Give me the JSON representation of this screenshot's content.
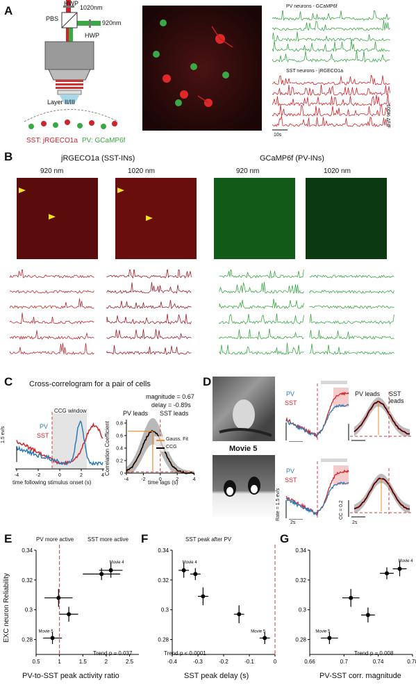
{
  "panels": {
    "A": "A",
    "B": "B",
    "C": "C",
    "D": "D",
    "E": "E",
    "F": "F",
    "G": "G"
  },
  "colors": {
    "red": "#d2232a",
    "green": "#3aa845",
    "blue": "#2b7bb9",
    "orange": "#f08a24",
    "dashed": "#d23a3a"
  },
  "panelA": {
    "hwp_top": "HWP",
    "wl_red": "1020nm",
    "pbs": "PBS",
    "wl_green": "920nm",
    "hwp_side": "HWP",
    "layer": "Layer II/III",
    "sst_label": "SST: jRGECO1a",
    "pv_label": "PV: GCaMP6f",
    "pv_traces_title": "PV neurons - GCaMP6f",
    "sst_traces_title": "SST neurons - jRGECO1a",
    "scale_time": "10s",
    "scale_df": "100% ΔF/F"
  },
  "panelB": {
    "title_red": "jRGECO1a (SST-INs)",
    "title_green": "GCaMP6f (PV-INs)",
    "wl1": "920 nm",
    "wl2": "1020 nm",
    "wl3": "920 nm",
    "wl4": "1020 nm"
  },
  "panelC": {
    "title": "Cross-correlogram for a pair of cells",
    "pv": "PV",
    "sst": "SST",
    "ccg_window": "CCG window",
    "scale": "1.5 ev/s",
    "xlabel_left": "time following stimulus onset (s)",
    "magnitude": "magnitude = 0.67",
    "delay": "delay = -0.89s",
    "pv_leads": "PV leads",
    "sst_leads": "SST leads",
    "ylabel_right": "Correlation Coefficient",
    "xlabel_right": "time lags (s)",
    "legend_fit": "Gauss. Fit",
    "legend_ccg": "CCG",
    "left_ticks": [
      "-4",
      "-2",
      "0",
      "2",
      "4"
    ],
    "right_xticks": [
      "-4",
      "-2",
      "0",
      "2",
      "4"
    ],
    "right_yticks": [
      "0",
      "0.2",
      "0.4",
      "0.6",
      "0.8"
    ]
  },
  "panelD": {
    "movie5": "Movie 5",
    "pv": "PV",
    "sst": "SST",
    "pv_leads": "PV leads",
    "sst_leads": "SST leads",
    "rate": "Rate = 1.5 ev/s",
    "cc": "CC = 0.2",
    "t1": "2s",
    "t2": "2s"
  },
  "panelE": {
    "ylabel": "EXC neuron Reliability",
    "xlabel": "PV-to-SST peak activity ratio",
    "top_left": "PV more active",
    "top_right": "SST more active",
    "movie4": "Movie 4",
    "movie5": "Movie 5",
    "trend": "Trend p = 0.037",
    "yticks": [
      "0.28",
      "0.3",
      "0.32",
      "0.34"
    ],
    "xticks": [
      "0.5",
      "1",
      "1.5",
      "2",
      "2.5"
    ]
  },
  "panelF": {
    "xlabel": "SST peak delay (s)",
    "top": "SST peak after PV",
    "movie4": "Movie 4",
    "movie5": "Movie 5",
    "trend": "Trend p < 0.0001",
    "yticks": [
      "0.28",
      "0.3",
      "0.32",
      "0.34"
    ],
    "xticks": [
      "-0.4",
      "-0.3",
      "-0.2",
      "-0.1",
      "0"
    ]
  },
  "panelG": {
    "xlabel": "PV-SST corr. magnitude",
    "movie4": "Movie 4",
    "movie5": "Movie 5",
    "trend": "Trend p = 0.008",
    "yticks": [
      "0.28",
      "0.3",
      "0.32",
      "0.34"
    ],
    "xticks": [
      "0.66",
      "0.7",
      "0.74",
      "0.78"
    ]
  },
  "chart_data": [
    {
      "type": "scatter",
      "panel": "E",
      "xlabel": "PV-to-SST peak activity ratio",
      "ylabel": "EXC neuron Reliability",
      "xlim": [
        0.5,
        2.7
      ],
      "ylim": [
        0.27,
        0.34
      ],
      "points": [
        {
          "x": 2.1,
          "y": 0.3265,
          "xerr": 0.25,
          "yerr": 0.005,
          "label": "Movie 4"
        },
        {
          "x": 1.9,
          "y": 0.324,
          "xerr": 0.4,
          "yerr": 0.004
        },
        {
          "x": 0.98,
          "y": 0.308,
          "xerr": 0.3,
          "yerr": 0.006
        },
        {
          "x": 1.2,
          "y": 0.297,
          "xerr": 0.2,
          "yerr": 0.005
        },
        {
          "x": 0.85,
          "y": 0.281,
          "xerr": 0.2,
          "yerr": 0.004,
          "label": "Movie 5"
        }
      ]
    },
    {
      "type": "scatter",
      "panel": "F",
      "xlabel": "SST peak delay (s)",
      "ylabel": "EXC neuron Reliability",
      "xlim": [
        -0.4,
        0.0
      ],
      "ylim": [
        0.27,
        0.34
      ],
      "points": [
        {
          "x": -0.355,
          "y": 0.3265,
          "xerr": 0.02,
          "yerr": 0.005,
          "label": "Movie 4"
        },
        {
          "x": -0.31,
          "y": 0.324,
          "xerr": 0.02,
          "yerr": 0.004
        },
        {
          "x": -0.28,
          "y": 0.309,
          "xerr": 0.02,
          "yerr": 0.006
        },
        {
          "x": -0.14,
          "y": 0.297,
          "xerr": 0.02,
          "yerr": 0.006
        },
        {
          "x": -0.04,
          "y": 0.281,
          "xerr": 0.02,
          "yerr": 0.004,
          "label": "Movie 5"
        }
      ]
    },
    {
      "type": "scatter",
      "panel": "G",
      "xlabel": "PV-SST corr. magnitude",
      "ylabel": "EXC neuron Reliability",
      "xlim": [
        0.66,
        0.78
      ],
      "ylim": [
        0.27,
        0.34
      ],
      "points": [
        {
          "x": 0.765,
          "y": 0.3275,
          "xerr": 0.008,
          "yerr": 0.005,
          "label": "Movie 4"
        },
        {
          "x": 0.75,
          "y": 0.3245,
          "xerr": 0.008,
          "yerr": 0.004
        },
        {
          "x": 0.708,
          "y": 0.308,
          "xerr": 0.01,
          "yerr": 0.006
        },
        {
          "x": 0.728,
          "y": 0.2965,
          "xerr": 0.008,
          "yerr": 0.005
        },
        {
          "x": 0.683,
          "y": 0.281,
          "xerr": 0.01,
          "yerr": 0.004,
          "label": "Movie 5"
        }
      ]
    }
  ]
}
